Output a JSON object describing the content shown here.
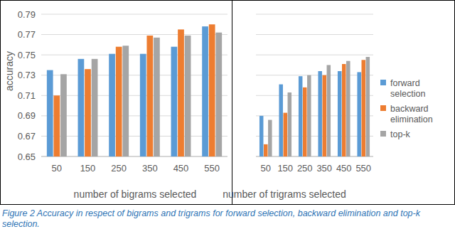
{
  "chart_data": [
    {
      "type": "bar",
      "y_label": "accuracy",
      "x_label": "number of bigrams selected",
      "categories": [
        "50",
        "150",
        "250",
        "350",
        "450",
        "550"
      ],
      "series": [
        {
          "name": "forward selection",
          "color": "#5b9bd5",
          "values": [
            0.735,
            0.746,
            0.751,
            0.751,
            0.758,
            0.778
          ]
        },
        {
          "name": "backward elimination",
          "color": "#ed7d31",
          "values": [
            0.71,
            0.736,
            0.758,
            0.769,
            0.775,
            0.78
          ]
        },
        {
          "name": "top-k",
          "color": "#a5a5a5",
          "values": [
            0.731,
            0.746,
            0.759,
            0.767,
            0.769,
            0.772
          ]
        }
      ],
      "ylim": [
        0.65,
        0.79
      ],
      "yticks": [
        0.65,
        0.67,
        0.69,
        0.71,
        0.73,
        0.75,
        0.77,
        0.79
      ],
      "grid": true,
      "legend": "right"
    },
    {
      "type": "bar",
      "x_label": "number of trigrams selected",
      "categories": [
        "50",
        "150",
        "250",
        "350",
        "450",
        "550"
      ],
      "series": [
        {
          "color": "#5b9bd5",
          "values": [
            0.69,
            0.721,
            0.729,
            0.734,
            0.734,
            0.733
          ]
        },
        {
          "color": "#ed7d31",
          "values": [
            0.662,
            0.693,
            0.718,
            0.73,
            0.741,
            0.745
          ]
        },
        {
          "color": "#a5a5a5",
          "values": [
            0.686,
            0.713,
            0.73,
            0.74,
            0.744,
            0.748
          ]
        }
      ],
      "ylim": [
        0.65,
        0.79
      ],
      "yticks": [
        0.65,
        0.67,
        0.69,
        0.71,
        0.73,
        0.75,
        0.77,
        0.79
      ],
      "grid": true,
      "tick_labels": "x"
    }
  ],
  "caption": "Figure 2 Accuracy in respect of bigrams and trigrams for forward selection, backward elimination and top-k selection."
}
